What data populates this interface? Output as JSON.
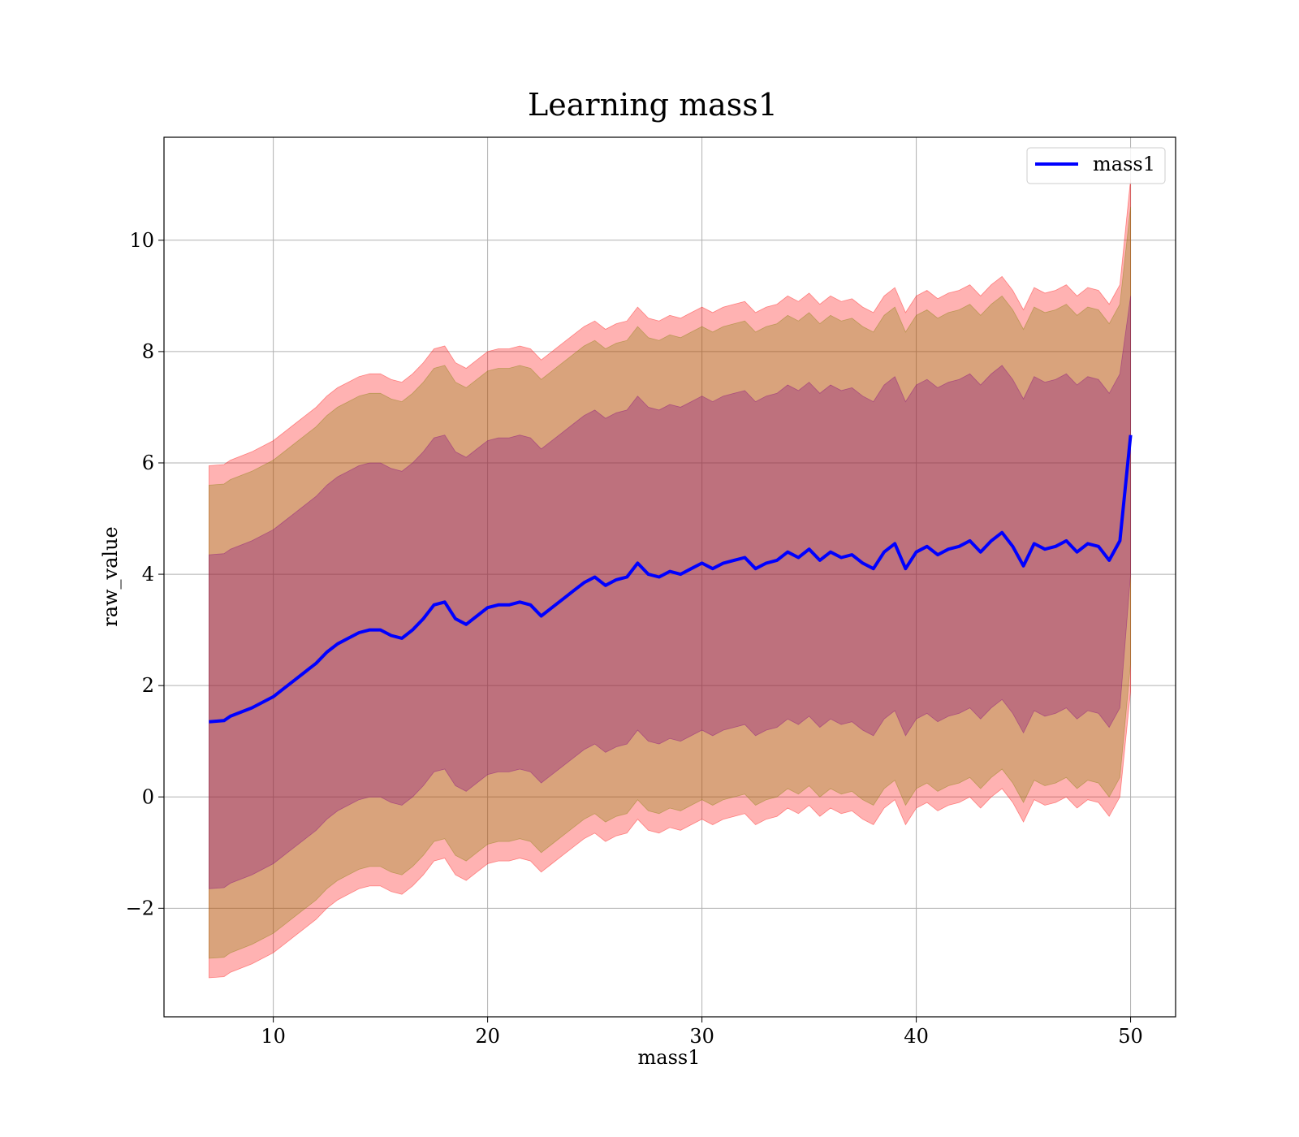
{
  "chart_data": {
    "type": "line",
    "title": "Learning mass1",
    "xlabel": "mass1",
    "ylabel": "raw_value",
    "xlim": [
      4.9,
      52.1
    ],
    "ylim": [
      -3.95,
      11.85
    ],
    "xticks": [
      10,
      20,
      30,
      40,
      50
    ],
    "yticks": [
      -2,
      0,
      2,
      4,
      6,
      8,
      10
    ],
    "ytick_labels": [
      "−2",
      "0",
      "2",
      "4",
      "6",
      "8",
      "10"
    ],
    "grid": true,
    "legend_position": "top-right",
    "series": [
      {
        "name": "mass1",
        "color": "#0000ff",
        "x": [
          7,
          7.7,
          8,
          9,
          10,
          10.5,
          11,
          11.5,
          12,
          12.5,
          13,
          13.5,
          14,
          14.5,
          15,
          15.5,
          16,
          16.5,
          17,
          17.5,
          18,
          18.5,
          19,
          19.5,
          20,
          20.5,
          21,
          21.5,
          22,
          22.5,
          23,
          23.5,
          24,
          24.5,
          25,
          25.5,
          26,
          26.5,
          27,
          27.5,
          28,
          28.5,
          29,
          29.5,
          30,
          30.5,
          31,
          31.5,
          32,
          32.5,
          33,
          33.5,
          34,
          34.5,
          35,
          35.5,
          36,
          36.5,
          37,
          37.5,
          38,
          38.5,
          39,
          39.5,
          40,
          40.5,
          41,
          41.5,
          42,
          42.5,
          43,
          43.5,
          44,
          44.5,
          45,
          45.5,
          46,
          46.5,
          47,
          47.5,
          48,
          48.5,
          49,
          49.5,
          50
        ],
        "y": [
          1.35,
          1.37,
          1.45,
          1.6,
          1.8,
          1.95,
          2.1,
          2.25,
          2.4,
          2.6,
          2.75,
          2.85,
          2.95,
          3.0,
          3.0,
          2.9,
          2.85,
          3.0,
          3.2,
          3.45,
          3.5,
          3.2,
          3.1,
          3.25,
          3.4,
          3.45,
          3.45,
          3.5,
          3.45,
          3.25,
          3.4,
          3.55,
          3.7,
          3.85,
          3.95,
          3.8,
          3.9,
          3.95,
          4.2,
          4.0,
          3.95,
          4.05,
          4.0,
          4.1,
          4.2,
          4.1,
          4.2,
          4.25,
          4.3,
          4.1,
          4.2,
          4.25,
          4.4,
          4.3,
          4.45,
          4.25,
          4.4,
          4.3,
          4.35,
          4.2,
          4.1,
          4.4,
          4.55,
          4.1,
          4.4,
          4.5,
          4.35,
          4.45,
          4.5,
          4.6,
          4.4,
          4.6,
          4.75,
          4.5,
          4.15,
          4.55,
          4.45,
          4.5,
          4.6,
          4.4,
          4.55,
          4.5,
          4.25,
          4.6,
          6.5
        ]
      }
    ],
    "bands": [
      {
        "color": "#ff0000",
        "opacity": 0.3,
        "x": [
          7,
          7.7,
          8,
          9,
          10,
          10.5,
          11,
          11.5,
          12,
          12.5,
          13,
          13.5,
          14,
          14.5,
          15,
          15.5,
          16,
          16.5,
          17,
          17.5,
          18,
          18.5,
          19,
          19.5,
          20,
          20.5,
          21,
          21.5,
          22,
          22.5,
          23,
          23.5,
          24,
          24.5,
          25,
          25.5,
          26,
          26.5,
          27,
          27.5,
          28,
          28.5,
          29,
          29.5,
          30,
          30.5,
          31,
          31.5,
          32,
          32.5,
          33,
          33.5,
          34,
          34.5,
          35,
          35.5,
          36,
          36.5,
          37,
          37.5,
          38,
          38.5,
          39,
          39.5,
          40,
          40.5,
          41,
          41.5,
          42,
          42.5,
          43,
          43.5,
          44,
          44.5,
          45,
          45.5,
          46,
          46.5,
          47,
          47.5,
          48,
          48.5,
          49,
          49.5,
          50
        ],
        "upper": [
          5.95,
          5.97,
          6.05,
          6.2,
          6.4,
          6.55,
          6.7,
          6.85,
          7.0,
          7.2,
          7.35,
          7.45,
          7.55,
          7.6,
          7.6,
          7.5,
          7.45,
          7.6,
          7.8,
          8.05,
          8.1,
          7.8,
          7.7,
          7.85,
          8.0,
          8.05,
          8.05,
          8.1,
          8.05,
          7.85,
          8.0,
          8.15,
          8.3,
          8.45,
          8.55,
          8.4,
          8.5,
          8.55,
          8.8,
          8.6,
          8.55,
          8.65,
          8.6,
          8.7,
          8.8,
          8.7,
          8.8,
          8.85,
          8.9,
          8.7,
          8.8,
          8.85,
          9.0,
          8.9,
          9.05,
          8.85,
          9.0,
          8.9,
          8.95,
          8.8,
          8.7,
          9.0,
          9.15,
          8.7,
          9.0,
          9.1,
          8.95,
          9.05,
          9.1,
          9.2,
          9.0,
          9.2,
          9.35,
          9.1,
          8.75,
          9.15,
          9.05,
          9.1,
          9.2,
          9.0,
          9.15,
          9.1,
          8.85,
          9.2,
          11.1
        ],
        "lower": [
          -3.25,
          -3.23,
          -3.15,
          -3.0,
          -2.8,
          -2.65,
          -2.5,
          -2.35,
          -2.2,
          -2.0,
          -1.85,
          -1.75,
          -1.65,
          -1.6,
          -1.6,
          -1.7,
          -1.75,
          -1.6,
          -1.4,
          -1.15,
          -1.1,
          -1.4,
          -1.5,
          -1.35,
          -1.2,
          -1.15,
          -1.15,
          -1.1,
          -1.15,
          -1.35,
          -1.2,
          -1.05,
          -0.9,
          -0.75,
          -0.65,
          -0.8,
          -0.7,
          -0.65,
          -0.4,
          -0.6,
          -0.65,
          -0.55,
          -0.6,
          -0.5,
          -0.4,
          -0.5,
          -0.4,
          -0.35,
          -0.3,
          -0.5,
          -0.4,
          -0.35,
          -0.2,
          -0.3,
          -0.15,
          -0.35,
          -0.2,
          -0.3,
          -0.25,
          -0.4,
          -0.5,
          -0.2,
          -0.05,
          -0.5,
          -0.2,
          -0.1,
          -0.25,
          -0.15,
          -0.1,
          0.0,
          -0.2,
          0.0,
          0.15,
          -0.1,
          -0.45,
          -0.05,
          -0.15,
          -0.1,
          0.0,
          -0.2,
          -0.05,
          -0.1,
          -0.35,
          0.0,
          1.9
        ]
      },
      {
        "color": "#808000",
        "opacity": 0.3,
        "x": [
          7,
          7.7,
          8,
          9,
          10,
          10.5,
          11,
          11.5,
          12,
          12.5,
          13,
          13.5,
          14,
          14.5,
          15,
          15.5,
          16,
          16.5,
          17,
          17.5,
          18,
          18.5,
          19,
          19.5,
          20,
          20.5,
          21,
          21.5,
          22,
          22.5,
          23,
          23.5,
          24,
          24.5,
          25,
          25.5,
          26,
          26.5,
          27,
          27.5,
          28,
          28.5,
          29,
          29.5,
          30,
          30.5,
          31,
          31.5,
          32,
          32.5,
          33,
          33.5,
          34,
          34.5,
          35,
          35.5,
          36,
          36.5,
          37,
          37.5,
          38,
          38.5,
          39,
          39.5,
          40,
          40.5,
          41,
          41.5,
          42,
          42.5,
          43,
          43.5,
          44,
          44.5,
          45,
          45.5,
          46,
          46.5,
          47,
          47.5,
          48,
          48.5,
          49,
          49.5,
          50
        ],
        "upper": [
          5.6,
          5.62,
          5.7,
          5.85,
          6.05,
          6.2,
          6.35,
          6.5,
          6.65,
          6.85,
          7.0,
          7.1,
          7.2,
          7.25,
          7.25,
          7.15,
          7.1,
          7.25,
          7.45,
          7.7,
          7.75,
          7.45,
          7.35,
          7.5,
          7.65,
          7.7,
          7.7,
          7.75,
          7.7,
          7.5,
          7.65,
          7.8,
          7.95,
          8.1,
          8.2,
          8.05,
          8.15,
          8.2,
          8.45,
          8.25,
          8.2,
          8.3,
          8.25,
          8.35,
          8.45,
          8.35,
          8.45,
          8.5,
          8.55,
          8.35,
          8.45,
          8.5,
          8.65,
          8.55,
          8.7,
          8.5,
          8.65,
          8.55,
          8.6,
          8.45,
          8.35,
          8.65,
          8.8,
          8.35,
          8.65,
          8.75,
          8.6,
          8.7,
          8.75,
          8.85,
          8.65,
          8.85,
          9.0,
          8.75,
          8.4,
          8.8,
          8.7,
          8.75,
          8.85,
          8.65,
          8.8,
          8.75,
          8.5,
          8.85,
          10.6
        ],
        "lower": [
          -2.9,
          -2.88,
          -2.8,
          -2.65,
          -2.45,
          -2.3,
          -2.15,
          -2.0,
          -1.85,
          -1.65,
          -1.5,
          -1.4,
          -1.3,
          -1.25,
          -1.25,
          -1.35,
          -1.4,
          -1.25,
          -1.05,
          -0.8,
          -0.75,
          -1.05,
          -1.15,
          -1.0,
          -0.85,
          -0.8,
          -0.8,
          -0.75,
          -0.8,
          -1.0,
          -0.85,
          -0.7,
          -0.55,
          -0.4,
          -0.3,
          -0.45,
          -0.35,
          -0.3,
          -0.05,
          -0.25,
          -0.3,
          -0.2,
          -0.25,
          -0.15,
          -0.05,
          -0.15,
          -0.05,
          0.0,
          0.05,
          -0.15,
          -0.05,
          0.0,
          0.15,
          0.05,
          0.2,
          0.0,
          0.15,
          0.05,
          0.1,
          -0.05,
          -0.15,
          0.15,
          0.3,
          -0.15,
          0.15,
          0.25,
          0.1,
          0.2,
          0.25,
          0.35,
          0.15,
          0.35,
          0.5,
          0.25,
          -0.1,
          0.3,
          0.2,
          0.25,
          0.35,
          0.15,
          0.3,
          0.25,
          0.0,
          0.35,
          2.4
        ]
      },
      {
        "color": "#800080",
        "opacity": 0.3,
        "x": [
          7,
          7.7,
          8,
          9,
          10,
          10.5,
          11,
          11.5,
          12,
          12.5,
          13,
          13.5,
          14,
          14.5,
          15,
          15.5,
          16,
          16.5,
          17,
          17.5,
          18,
          18.5,
          19,
          19.5,
          20,
          20.5,
          21,
          21.5,
          22,
          22.5,
          23,
          23.5,
          24,
          24.5,
          25,
          25.5,
          26,
          26.5,
          27,
          27.5,
          28,
          28.5,
          29,
          29.5,
          30,
          30.5,
          31,
          31.5,
          32,
          32.5,
          33,
          33.5,
          34,
          34.5,
          35,
          35.5,
          36,
          36.5,
          37,
          37.5,
          38,
          38.5,
          39,
          39.5,
          40,
          40.5,
          41,
          41.5,
          42,
          42.5,
          43,
          43.5,
          44,
          44.5,
          45,
          45.5,
          46,
          46.5,
          47,
          47.5,
          48,
          48.5,
          49,
          49.5,
          50
        ],
        "upper": [
          4.35,
          4.37,
          4.45,
          4.6,
          4.8,
          4.95,
          5.1,
          5.25,
          5.4,
          5.6,
          5.75,
          5.85,
          5.95,
          6.0,
          6.0,
          5.9,
          5.85,
          6.0,
          6.2,
          6.45,
          6.5,
          6.2,
          6.1,
          6.25,
          6.4,
          6.45,
          6.45,
          6.5,
          6.45,
          6.25,
          6.4,
          6.55,
          6.7,
          6.85,
          6.95,
          6.8,
          6.9,
          6.95,
          7.2,
          7.0,
          6.95,
          7.05,
          7.0,
          7.1,
          7.2,
          7.1,
          7.2,
          7.25,
          7.3,
          7.1,
          7.2,
          7.25,
          7.4,
          7.3,
          7.45,
          7.25,
          7.4,
          7.3,
          7.35,
          7.2,
          7.1,
          7.4,
          7.55,
          7.1,
          7.4,
          7.5,
          7.35,
          7.45,
          7.5,
          7.6,
          7.4,
          7.6,
          7.75,
          7.5,
          7.15,
          7.55,
          7.45,
          7.5,
          7.6,
          7.4,
          7.55,
          7.5,
          7.25,
          7.6,
          9.0
        ],
        "lower": [
          -1.65,
          -1.63,
          -1.55,
          -1.4,
          -1.2,
          -1.05,
          -0.9,
          -0.75,
          -0.6,
          -0.4,
          -0.25,
          -0.15,
          -0.05,
          0.0,
          0.0,
          -0.1,
          -0.15,
          0.0,
          0.2,
          0.45,
          0.5,
          0.2,
          0.1,
          0.25,
          0.4,
          0.45,
          0.45,
          0.5,
          0.45,
          0.25,
          0.4,
          0.55,
          0.7,
          0.85,
          0.95,
          0.8,
          0.9,
          0.95,
          1.2,
          1.0,
          0.95,
          1.05,
          1.0,
          1.1,
          1.2,
          1.1,
          1.2,
          1.25,
          1.3,
          1.1,
          1.2,
          1.25,
          1.4,
          1.3,
          1.45,
          1.25,
          1.4,
          1.3,
          1.35,
          1.2,
          1.1,
          1.4,
          1.55,
          1.1,
          1.4,
          1.5,
          1.35,
          1.45,
          1.5,
          1.6,
          1.4,
          1.6,
          1.75,
          1.5,
          1.15,
          1.55,
          1.45,
          1.5,
          1.6,
          1.4,
          1.55,
          1.5,
          1.25,
          1.6,
          4.0
        ]
      }
    ]
  }
}
